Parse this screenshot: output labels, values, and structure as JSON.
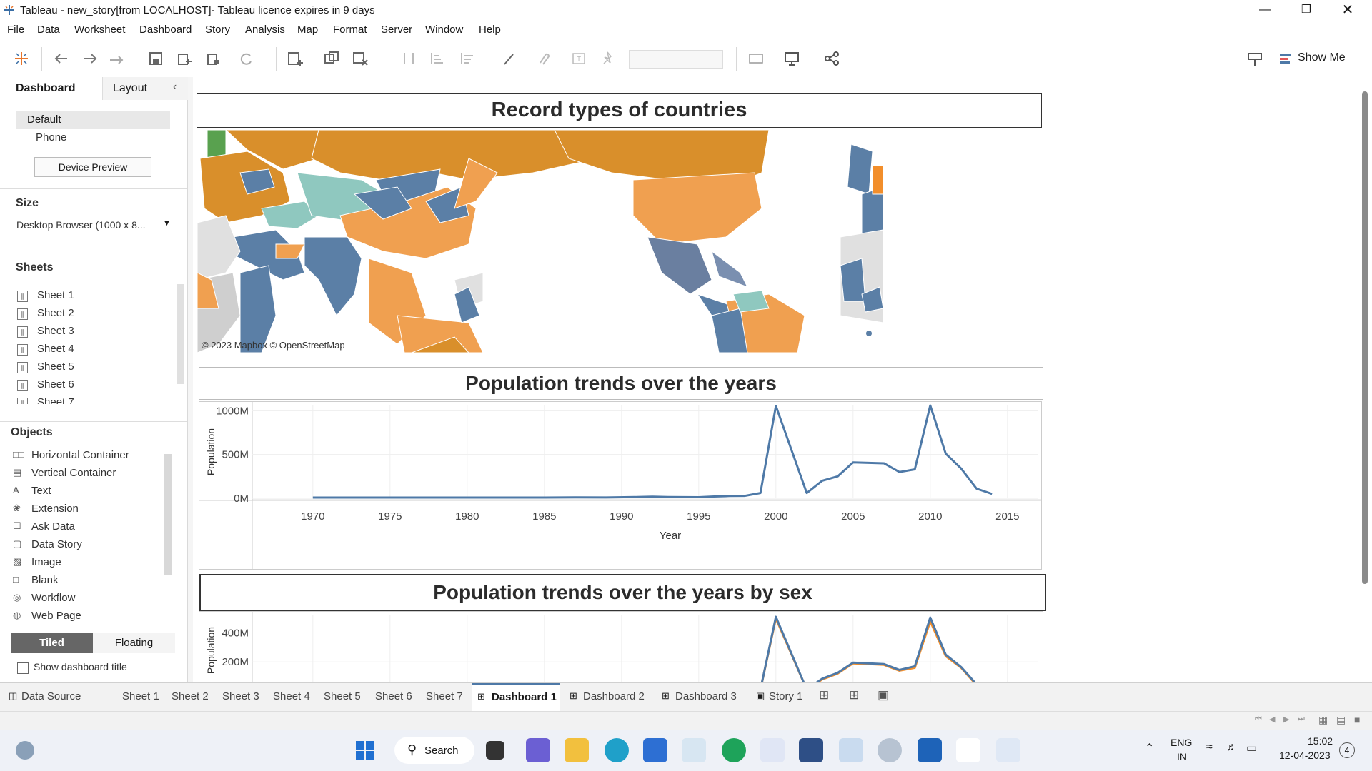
{
  "window": {
    "title": "Tableau - new_story[from LOCALHOST]- Tableau licence expires in 9 days"
  },
  "menu": [
    "File",
    "Data",
    "Worksheet",
    "Dashboard",
    "Story",
    "Analysis",
    "Map",
    "Format",
    "Server",
    "Window",
    "Help"
  ],
  "toolbar": {
    "show_me": "Show Me"
  },
  "left": {
    "tab_dashboard": "Dashboard",
    "tab_layout": "Layout",
    "device_default": "Default",
    "device_phone": "Phone",
    "device_preview": "Device Preview",
    "size_title": "Size",
    "size_value": "Desktop Browser (1000 x 8...",
    "sheets_title": "Sheets",
    "sheets": [
      "Sheet 1",
      "Sheet 2",
      "Sheet 3",
      "Sheet 4",
      "Sheet 5",
      "Sheet 6",
      "Sheet 7"
    ],
    "objects_title": "Objects",
    "objects": [
      "Horizontal Container",
      "Vertical Container",
      "Text",
      "Extension",
      "Ask Data",
      "Data Story",
      "Image",
      "Blank",
      "Workflow",
      "Web Page"
    ],
    "tiled": "Tiled",
    "floating": "Floating",
    "show_title": "Show dashboard title"
  },
  "dashboard": {
    "map_title": "Record types of countries",
    "map_credit": "© 2023 Mapbox © OpenStreetMap",
    "chart1_title": "Population trends over the years",
    "chart2_title": "Population trends over the years by sex"
  },
  "chart_data": [
    {
      "type": "line",
      "title": "Population trends over the years",
      "xlabel": "Year",
      "ylabel": "Population",
      "x_ticks": [
        "1970",
        "1975",
        "1980",
        "1985",
        "1990",
        "1995",
        "2000",
        "2005",
        "2010",
        "2015"
      ],
      "y_ticks": [
        "1000M",
        "500M",
        "0M"
      ],
      "xlim": [
        1967,
        2017
      ],
      "ylim": [
        0,
        1060
      ],
      "color": "#4e79a7",
      "x": [
        1970,
        1975,
        1980,
        1985,
        1987,
        1989,
        1991,
        1992,
        1993,
        1995,
        1996,
        1997,
        1998,
        1999,
        2000,
        2002,
        2003,
        2004,
        2005,
        2007,
        2008,
        2009,
        2010,
        2011,
        2012,
        2013,
        2014
      ],
      "values": [
        8,
        8,
        8,
        8,
        10,
        9,
        14,
        18,
        14,
        12,
        20,
        26,
        28,
        60,
        1055,
        60,
        200,
        250,
        410,
        400,
        300,
        330,
        1060,
        510,
        340,
        110,
        50
      ]
    },
    {
      "type": "line",
      "title": "Population trends over the years by sex",
      "ylabel": "Population",
      "y_ticks": [
        "400M",
        "200M"
      ],
      "xlim": [
        1967,
        2017
      ],
      "ylim": [
        0,
        520
      ],
      "series": [
        {
          "color": "#f28e2b",
          "x": [
            1999,
            2000,
            2002,
            2003,
            2004,
            2005,
            2007,
            2008,
            2009,
            2010,
            2011,
            2012,
            2013,
            2014
          ],
          "values": [
            10,
            500,
            10,
            80,
            120,
            190,
            180,
            140,
            160,
            480,
            240,
            160,
            40,
            5
          ]
        },
        {
          "color": "#4e79a7",
          "x": [
            1999,
            2000,
            2002,
            2003,
            2004,
            2005,
            2007,
            2008,
            2009,
            2010,
            2011,
            2012,
            2013,
            2014
          ],
          "values": [
            10,
            510,
            10,
            85,
            125,
            195,
            185,
            145,
            170,
            505,
            250,
            165,
            45,
            5
          ]
        }
      ]
    }
  ],
  "tabs": [
    "Data Source",
    "Sheet 1",
    "Sheet 2",
    "Sheet 3",
    "Sheet 4",
    "Sheet 5",
    "Sheet 6",
    "Sheet 7",
    "Dashboard 1",
    "Dashboard 2",
    "Dashboard 3",
    "Story 1"
  ],
  "active_tab": "Dashboard 1",
  "taskbar": {
    "search": "Search",
    "lang1": "ENG",
    "lang2": "IN",
    "time": "15:02",
    "date": "12-04-2023",
    "notif": "4"
  }
}
